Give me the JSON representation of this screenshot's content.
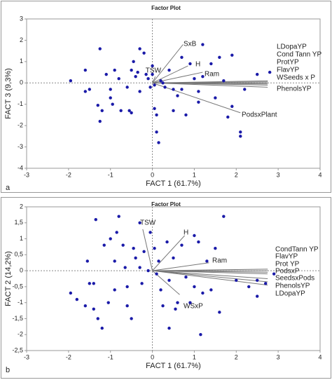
{
  "chart_data": [
    {
      "type": "scatter",
      "title": "Factor Plot",
      "panel": "a",
      "x_label": "FACT 1 (61.7%)",
      "y_label": "FACT 3 (9,3%)",
      "xlim": [
        -3,
        4
      ],
      "xticks": [
        -3,
        -2,
        -1,
        0,
        1,
        2,
        3,
        4
      ],
      "ylim": [
        -4,
        3
      ],
      "yticks": [
        -4,
        -3,
        -2,
        -1,
        0,
        1,
        2,
        3
      ],
      "series": [
        {
          "color": "#1a1aa8",
          "x": [
            -1.95,
            -1.6,
            -1.5,
            -1.6,
            -1.25,
            -1.3,
            -1.2,
            -1.25,
            -1.1,
            -1.0,
            -1.0,
            -0.95,
            -0.9,
            -0.8,
            -0.75,
            -0.6,
            -0.5,
            -0.55,
            -0.5,
            -0.45,
            -0.4,
            -0.3,
            -0.35,
            -0.3,
            -0.2,
            -0.15,
            -0.1,
            -0.05,
            0.0,
            0.0,
            0.05,
            0.05,
            0.1,
            0.1,
            0.15,
            0.2,
            0.25,
            0.3,
            0.4,
            0.5,
            0.5,
            0.6,
            0.7,
            0.7,
            0.8,
            0.9,
            1.0,
            1.1,
            1.1,
            1.2,
            1.2,
            1.4,
            1.5,
            1.6,
            1.7,
            1.8,
            1.9,
            1.9,
            2.1,
            2.1,
            2.8,
            2.5,
            2.2
          ],
          "y": [
            0.1,
            0.6,
            -0.3,
            -0.4,
            1.6,
            -1.05,
            -1.3,
            -1.8,
            0.4,
            -0.3,
            -0.7,
            -1.0,
            0.6,
            0.2,
            -1.3,
            -0.2,
            0.6,
            -1.3,
            -1.4,
            1.0,
            0.3,
            1.6,
            0.5,
            -0.4,
            1.4,
            0.4,
            0.2,
            -0.2,
            0.8,
            0.4,
            -0.1,
            -1.2,
            -1.5,
            -2.3,
            -2.8,
            0.1,
            0.0,
            -0.2,
            0.6,
            -0.3,
            -1.3,
            -0.6,
            -0.3,
            1.2,
            -1.5,
            0.9,
            0.2,
            -0.4,
            -0.9,
            1.8,
            0.3,
            0.9,
            -0.7,
            1.2,
            0.1,
            -1.6,
            1.3,
            -1.1,
            -2.3,
            -2.5,
            0.5,
            0.4,
            -0.3
          ]
        }
      ],
      "vector_color": "#777777",
      "vectors": [
        {
          "name": "SxB",
          "x": 0.73,
          "y": 1.8
        },
        {
          "name": "H",
          "x": 0.85,
          "y": 0.8
        },
        {
          "name": "TSW",
          "x": 0.07,
          "y": 0.3
        },
        {
          "name": "Ram",
          "x": 1.2,
          "y": 0.5
        },
        {
          "name": "LDopaYP",
          "x": 2.75,
          "y": 0.1
        },
        {
          "name": "Cond Tann YP",
          "x": 2.75,
          "y": 0.05
        },
        {
          "name": "ProtYP",
          "x": 2.75,
          "y": 0.0
        },
        {
          "name": "FlavYP",
          "x": 2.75,
          "y": -0.05
        },
        {
          "name": "WSeeds x P",
          "x": 2.75,
          "y": -0.1
        },
        {
          "name": "PhenolsYP",
          "x": 2.75,
          "y": -0.2
        },
        {
          "name": "PodsxPlant",
          "x": 2.1,
          "y": -1.4
        }
      ]
    },
    {
      "type": "scatter",
      "title": "Factor Plot",
      "panel": "b",
      "x_label": "FACT 1 (61.7%)",
      "y_label": "FACT 2 (14,2%)",
      "xlim": [
        -3,
        4
      ],
      "xticks": [
        -3,
        -2,
        -1,
        0,
        1,
        2,
        3,
        4
      ],
      "ylim": [
        -2.5,
        2
      ],
      "yticks": [
        {
          "value": -2.5,
          "label": "-2,5"
        },
        -2,
        {
          "value": -1.5,
          "label": "-1,5"
        },
        -1,
        {
          "value": -0.5,
          "label": "-0,5"
        },
        0,
        {
          "value": 0.5,
          "label": "0,5"
        },
        1,
        {
          "value": 1.5,
          "label": "1,5"
        },
        2
      ],
      "series": [
        {
          "color": "#1a1aa8",
          "x": [
            -1.95,
            -1.8,
            -1.6,
            -1.55,
            -1.5,
            -1.4,
            -1.4,
            -1.35,
            -1.3,
            -1.2,
            -1.15,
            -1.05,
            -1.0,
            -0.9,
            -0.9,
            -0.85,
            -0.8,
            -0.7,
            -0.65,
            -0.6,
            -0.6,
            -0.5,
            -0.45,
            -0.4,
            -0.3,
            -0.3,
            -0.25,
            -0.2,
            -0.1,
            -0.05,
            0.05,
            0.1,
            0.15,
            0.2,
            0.25,
            0.35,
            0.4,
            0.4,
            0.5,
            0.55,
            0.6,
            0.7,
            0.8,
            0.9,
            1.0,
            1.0,
            1.1,
            1.15,
            1.2,
            1.3,
            1.4,
            1.5,
            1.6,
            1.7,
            2.0,
            2.3,
            2.5,
            2.5,
            2.7,
            2.9
          ],
          "y": [
            -0.7,
            -0.9,
            -1.1,
            0.3,
            -0.4,
            -0.4,
            -1.2,
            1.6,
            -1.5,
            -1.8,
            0.8,
            -1.0,
            1.0,
            0.3,
            -0.6,
            1.2,
            1.7,
            0.8,
            0.1,
            -0.5,
            -1.1,
            -1.5,
            0.7,
            0.4,
            0.1,
            1.5,
            -0.4,
            0.6,
            0.0,
            1.2,
            0.7,
            -0.1,
            0.3,
            -0.6,
            -1.1,
            0.9,
            -0.3,
            -1.8,
            0.4,
            -1.2,
            -1.0,
            0.8,
            -0.2,
            -1.0,
            1.1,
            -0.5,
            0.9,
            -2.0,
            -0.7,
            0.3,
            -0.6,
            0.7,
            -1.3,
            1.7,
            -0.3,
            -0.5,
            -0.3,
            -0.8,
            -0.4,
            -0.1
          ]
        }
      ],
      "vector_color": "#777777",
      "vectors": [
        {
          "name": "TSW",
          "x": -0.23,
          "y": 1.3
        },
        {
          "name": "H",
          "x": 0.77,
          "y": 1.1
        },
        {
          "name": "Ram",
          "x": 1.35,
          "y": 0.25
        },
        {
          "name": "WSxP",
          "x": 0.65,
          "y": -0.75
        },
        {
          "name": "CondTann YP",
          "x": 2.75,
          "y": 0.05
        },
        {
          "name": "FlavYP",
          "x": 2.75,
          "y": 0.0
        },
        {
          "name": "Prot YP",
          "x": 2.75,
          "y": -0.05
        },
        {
          "name": "PodsxP",
          "x": 2.75,
          "y": -0.1
        },
        {
          "name": "SeedsxPods",
          "x": 2.75,
          "y": -0.25
        },
        {
          "name": "PhenolsYP",
          "x": 2.75,
          "y": -0.35
        },
        {
          "name": "LDopaYP",
          "x": 2.75,
          "y": -0.45
        }
      ]
    }
  ]
}
